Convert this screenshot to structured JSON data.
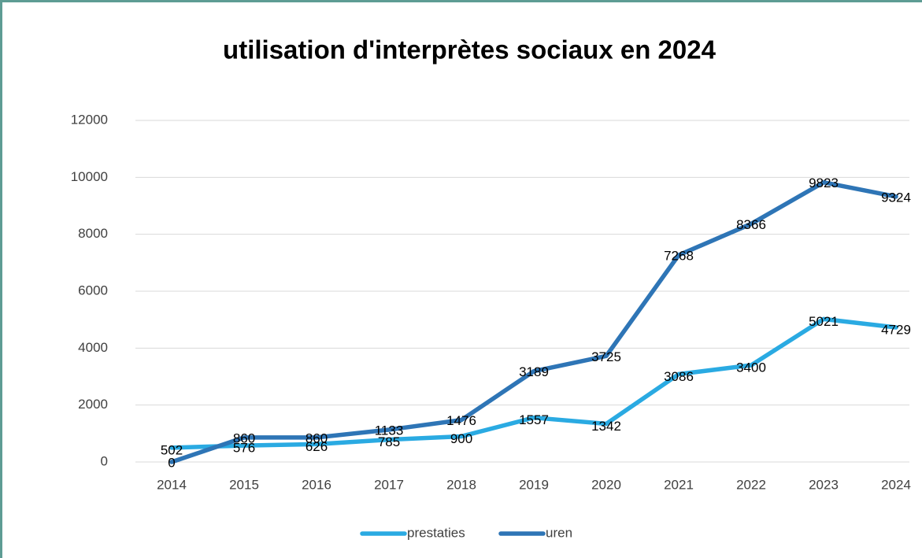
{
  "chart_data": {
    "type": "line",
    "title": "utilisation d'interprètes sociaux en 2024",
    "categories": [
      "2014",
      "2015",
      "2016",
      "2017",
      "2018",
      "2019",
      "2020",
      "2021",
      "2022",
      "2023",
      "2024"
    ],
    "series": [
      {
        "name": "prestaties",
        "color": "#2aaae2",
        "values": [
          502,
          576,
          626,
          785,
          900,
          1557,
          1342,
          3086,
          3400,
          5021,
          4729
        ]
      },
      {
        "name": "uren",
        "color": "#2e75b6",
        "values": [
          0,
          860,
          860,
          1133,
          1476,
          3189,
          3725,
          7268,
          8366,
          9823,
          9324
        ]
      }
    ],
    "ylim": [
      0,
      12000
    ],
    "yticks": [
      0,
      2000,
      4000,
      6000,
      8000,
      10000,
      12000
    ],
    "grid": true,
    "legend": "bottom"
  }
}
